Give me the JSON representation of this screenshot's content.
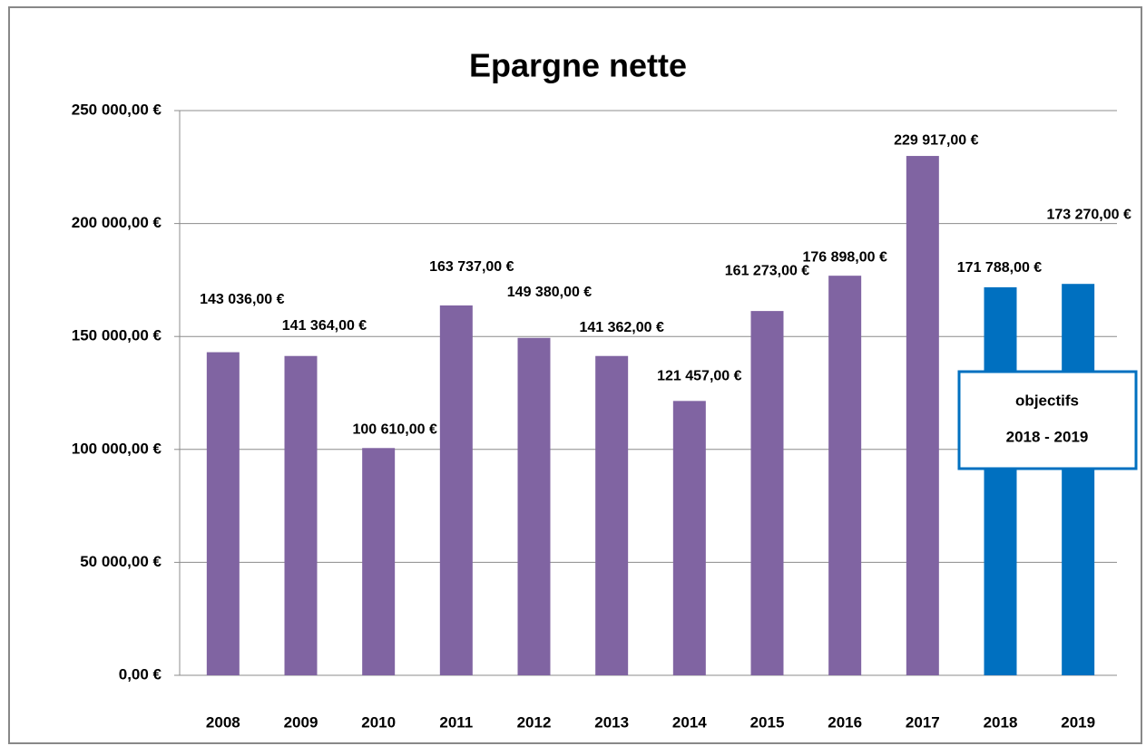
{
  "chart_data": {
    "type": "bar",
    "title": "Epargne nette",
    "categories": [
      "2008",
      "2009",
      "2010",
      "2011",
      "2012",
      "2013",
      "2014",
      "2015",
      "2016",
      "2017",
      "2018",
      "2019"
    ],
    "values": [
      143036,
      141364,
      100610,
      163737,
      149380,
      141362,
      121457,
      161273,
      176898,
      229917,
      171788,
      173270
    ],
    "value_labels": [
      "143 036,00 €",
      "141 364,00 €",
      "100 610,00 €",
      "163 737,00 €",
      "149 380,00 €",
      "141 362,00 €",
      "121 457,00 €",
      "161 273,00 €",
      "176 898,00 €",
      "229 917,00 €",
      "171 788,00 €",
      "173 270,00 €"
    ],
    "colors": [
      "#8064a2",
      "#8064a2",
      "#8064a2",
      "#8064a2",
      "#8064a2",
      "#8064a2",
      "#8064a2",
      "#8064a2",
      "#8064a2",
      "#8064a2",
      "#0070c0",
      "#0070c0"
    ],
    "ylim": [
      0,
      250000
    ],
    "yticks": [
      {
        "value": 0,
        "label": "0,00 €"
      },
      {
        "value": 50000,
        "label": "50 000,00 €"
      },
      {
        "value": 100000,
        "label": "100 000,00 €"
      },
      {
        "value": 150000,
        "label": "150 000,00 €"
      },
      {
        "value": 200000,
        "label": "200 000,00 €"
      },
      {
        "value": 250000,
        "label": "250 000,00 €"
      }
    ],
    "grid": true,
    "annotation": [
      "objectifs",
      "2018 - 2019"
    ]
  }
}
